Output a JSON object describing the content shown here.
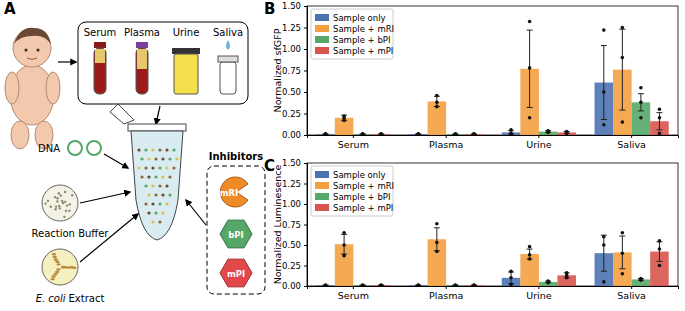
{
  "chart_data": [
    {
      "type": "bar",
      "title": "B",
      "ylabel": "Normalized sfGFP",
      "categories": [
        "Serum",
        "Plasma",
        "Urine",
        "Saliva"
      ],
      "ylim": [
        0,
        1.5
      ],
      "yticks": [
        {
          "value": 0,
          "label": "0.00"
        },
        {
          "value": 0.25,
          "label": "0.25"
        },
        {
          "value": 0.5,
          "label": "0.50"
        },
        {
          "value": 0.75,
          "label": "0.75"
        },
        {
          "value": 1,
          "label": "1.00"
        },
        {
          "value": 1.25,
          "label": "1.25"
        },
        {
          "value": 1.5,
          "label": "1.50"
        }
      ],
      "legend": "upper left",
      "series": [
        {
          "name": "Sample only",
          "color": "#4c72b0",
          "values": [
            0.01,
            0.01,
            0.03,
            0.61
          ],
          "errors": [
            0.002,
            0.002,
            0.02,
            0.43
          ],
          "points": [
            [
              0.01,
              0.01,
              0.01
            ],
            [
              0.01,
              0.01,
              0.01
            ],
            [
              0.01,
              0.02,
              0.06
            ],
            [
              0.12,
              0.5,
              1.22
            ]
          ]
        },
        {
          "name": "Sample + mRI",
          "color": "#f5a040",
          "values": [
            0.2,
            0.39,
            0.77,
            0.76
          ],
          "errors": [
            0.03,
            0.06,
            0.45,
            0.47
          ],
          "points": [
            [
              0.17,
              0.2,
              0.22
            ],
            [
              0.33,
              0.38,
              0.46
            ],
            [
              0.2,
              0.78,
              1.32
            ],
            [
              0.15,
              0.9,
              1.25
            ]
          ]
        },
        {
          "name": "Sample + bPI",
          "color": "#55a868",
          "values": [
            0.01,
            0.01,
            0.04,
            0.38
          ],
          "errors": [
            0.002,
            0.002,
            0.01,
            0.1
          ],
          "points": [
            [
              0.01,
              0.01,
              0.01
            ],
            [
              0.01,
              0.01,
              0.01
            ],
            [
              0.03,
              0.04,
              0.05
            ],
            [
              0.2,
              0.38,
              0.55
            ]
          ]
        },
        {
          "name": "Sample + mPI",
          "color": "#d9544f",
          "values": [
            0.01,
            0.01,
            0.03,
            0.16
          ],
          "errors": [
            0.002,
            0.002,
            0.01,
            0.1
          ],
          "points": [
            [
              0.01,
              0.01,
              0.01
            ],
            [
              0.01,
              0.01,
              0.01
            ],
            [
              0.02,
              0.03,
              0.04
            ],
            [
              0.02,
              0.2,
              0.3
            ]
          ]
        }
      ]
    },
    {
      "type": "bar",
      "title": "C",
      "ylabel": "Normalized Luminesence",
      "categories": [
        "Serum",
        "Plasma",
        "Urine",
        "Saliva"
      ],
      "ylim": [
        0,
        1.5
      ],
      "yticks": [
        {
          "value": 0,
          "label": "0.00"
        },
        {
          "value": 0.25,
          "label": "0.25"
        },
        {
          "value": 0.5,
          "label": "0.50"
        },
        {
          "value": 0.75,
          "label": "0.75"
        },
        {
          "value": 1,
          "label": "1.00"
        },
        {
          "value": 1.25,
          "label": "1.25"
        },
        {
          "value": 1.5,
          "label": "1.50"
        }
      ],
      "legend": "upper left",
      "series": [
        {
          "name": "Sample only",
          "color": "#4c72b0",
          "values": [
            0.01,
            0.01,
            0.1,
            0.4
          ],
          "errors": [
            0.002,
            0.002,
            0.07,
            0.22
          ],
          "points": [
            [
              0.01,
              0.01,
              0.01
            ],
            [
              0.01,
              0.01,
              0.01
            ],
            [
              0.02,
              0.1,
              0.18
            ],
            [
              0.05,
              0.5,
              0.6
            ]
          ]
        },
        {
          "name": "Sample + mRI",
          "color": "#f5a040",
          "values": [
            0.51,
            0.57,
            0.39,
            0.41
          ],
          "errors": [
            0.12,
            0.14,
            0.06,
            0.2
          ],
          "points": [
            [
              0.37,
              0.5,
              0.65
            ],
            [
              0.42,
              0.53,
              0.76
            ],
            [
              0.33,
              0.38,
              0.48
            ],
            [
              0.15,
              0.4,
              0.65
            ]
          ]
        },
        {
          "name": "Sample + bPI",
          "color": "#55a868",
          "values": [
            0.01,
            0.01,
            0.05,
            0.08
          ],
          "errors": [
            0.002,
            0.002,
            0.01,
            0.01
          ],
          "points": [
            [
              0.01,
              0.01,
              0.01
            ],
            [
              0.01,
              0.01,
              0.01
            ],
            [
              0.04,
              0.05,
              0.06
            ],
            [
              0.07,
              0.08,
              0.09
            ]
          ]
        },
        {
          "name": "Sample + mPI",
          "color": "#d9544f",
          "values": [
            0.01,
            0.01,
            0.13,
            0.42
          ],
          "errors": [
            0.002,
            0.002,
            0.03,
            0.12
          ],
          "points": [
            [
              0.01,
              0.01,
              0.01
            ],
            [
              0.01,
              0.01,
              0.01
            ],
            [
              0.1,
              0.13,
              0.16
            ],
            [
              0.25,
              0.45,
              0.55
            ]
          ]
        }
      ]
    }
  ],
  "diagram": {
    "panel": "A",
    "samples": [
      "Serum",
      "Plasma",
      "Urine",
      "Saliva"
    ],
    "components": [
      {
        "label_parts": [
          "DNA"
        ]
      },
      {
        "label_parts": [
          "Reaction Buffer"
        ]
      },
      {
        "label_parts": [
          "E. coli",
          "Extract"
        ]
      }
    ],
    "inhibitors": {
      "title": "Inhibitors",
      "items": [
        "mRI",
        "bPI",
        "mPI"
      ]
    }
  }
}
